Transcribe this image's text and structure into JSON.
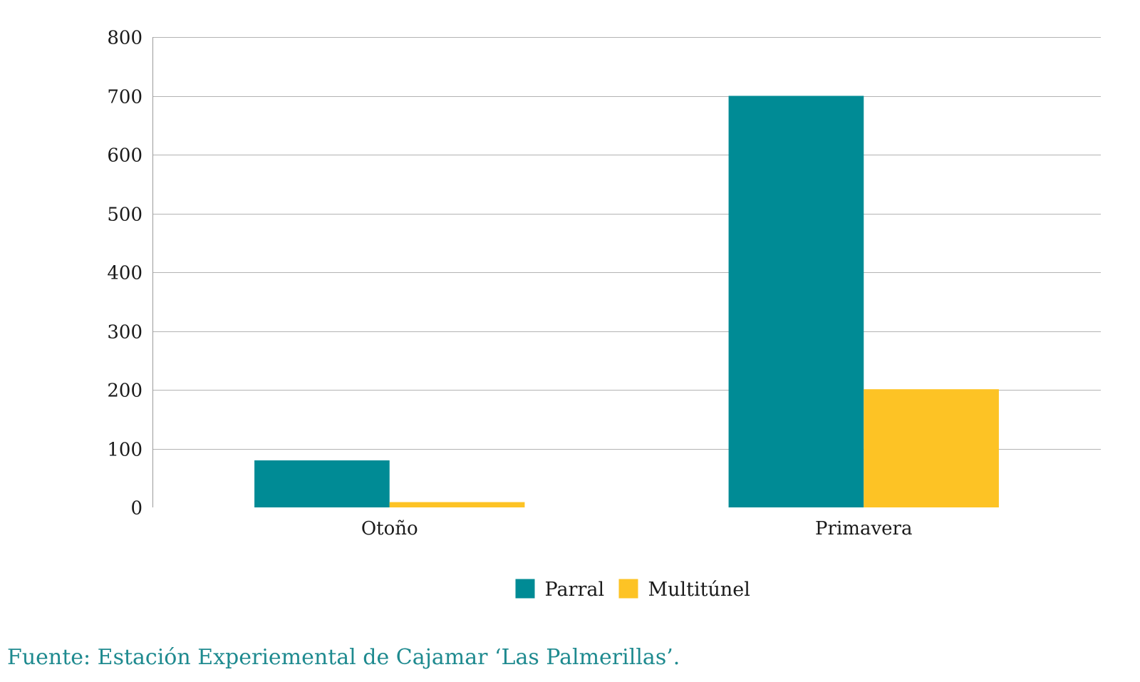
{
  "chart_data": {
    "type": "bar",
    "categories": [
      "Otoño",
      "Primavera"
    ],
    "series": [
      {
        "name": "Parral",
        "values": [
          80,
          700
        ],
        "color": "#008B95"
      },
      {
        "name": "Multitúnel",
        "values": [
          9,
          201
        ],
        "color": "#FDC325"
      }
    ],
    "title": "",
    "xlabel": "",
    "ylabel": "",
    "ylim": [
      0,
      800
    ],
    "yticks": [
      0,
      100,
      200,
      300,
      400,
      500,
      600,
      700,
      800
    ],
    "grid": true,
    "legend": "bottom-center"
  },
  "source": "Fuente: Estación Experiemental de Cajamar ‘Las Palmerillas’.",
  "colors": {
    "grid": "#b3b3b3",
    "axis": "#9a9a9a",
    "source_text": "#1e8a8f"
  }
}
